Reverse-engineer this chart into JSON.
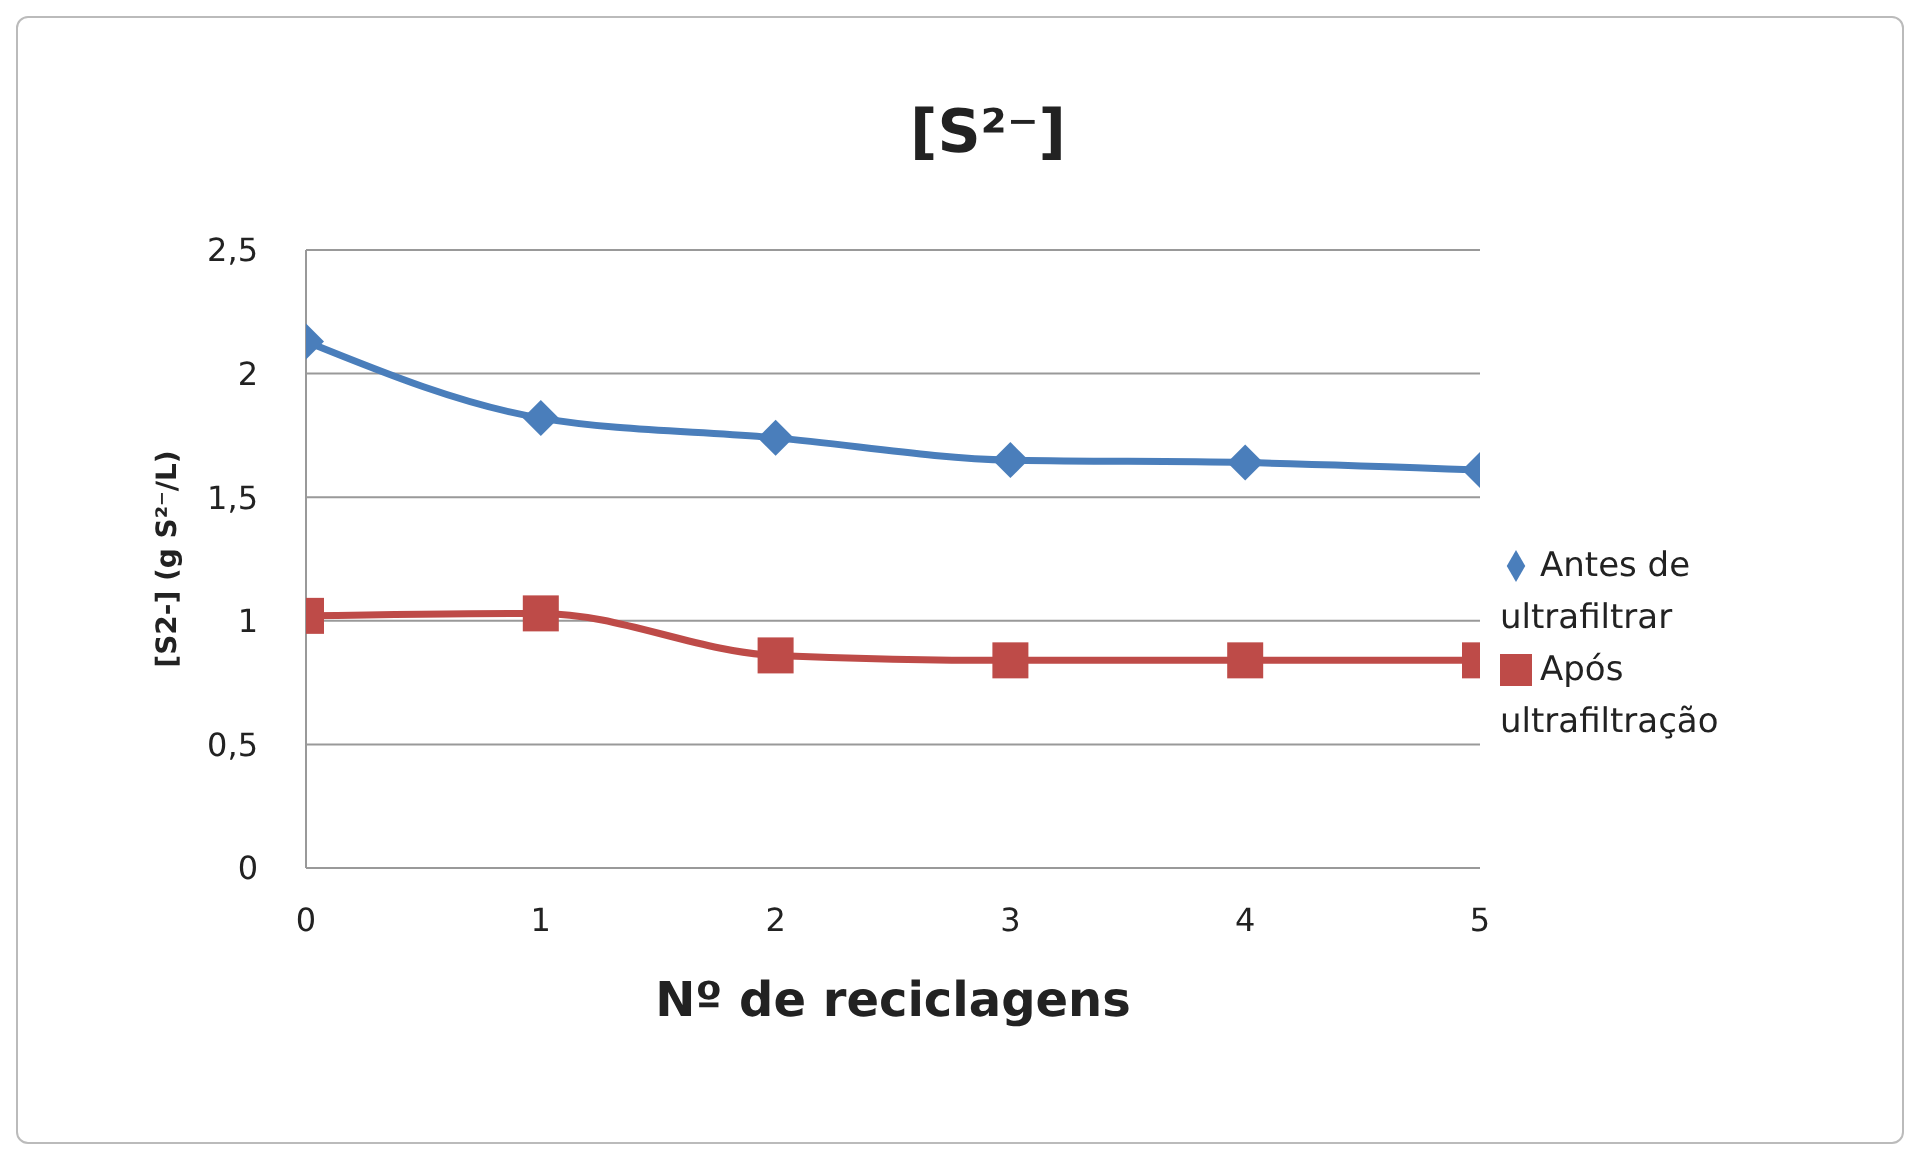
{
  "chart_data": {
    "type": "line",
    "title": "[S²⁻]",
    "xlabel": "Nº de reciclagens",
    "ylabel": "[S2-] (g S²⁻/L)",
    "x": [
      0,
      1,
      2,
      3,
      4,
      5
    ],
    "series": [
      {
        "name": "Antes de ultrafiltrar",
        "color": "#4a7ebb",
        "marker": "diamond",
        "values": [
          2.13,
          1.82,
          1.74,
          1.65,
          1.64,
          1.61
        ]
      },
      {
        "name": "Após ultrafiltração",
        "color": "#be4b48",
        "marker": "square",
        "values": [
          1.02,
          1.03,
          0.86,
          0.84,
          0.84,
          0.84
        ]
      }
    ],
    "xlim": [
      0,
      5
    ],
    "xticks": [
      0,
      1,
      2,
      3,
      4,
      5
    ],
    "ylim": [
      0,
      2.5
    ],
    "yticks": [
      0,
      {
        "value": 0.5,
        "label": "0,5"
      },
      1,
      {
        "value": 1.5,
        "label": "1,5"
      },
      2,
      {
        "value": 2.5,
        "label": "2,5"
      }
    ],
    "grid": "y",
    "legend": "right",
    "line_style": "solid"
  }
}
